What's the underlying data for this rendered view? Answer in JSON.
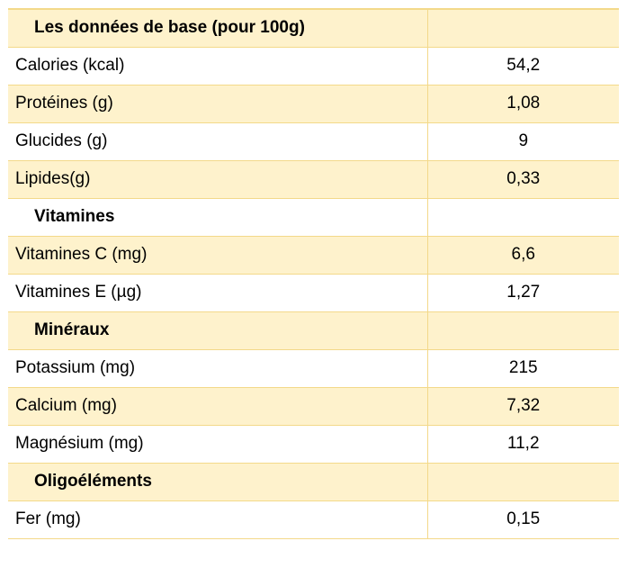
{
  "title": "Les données de base (pour 100g)",
  "rows": [
    {
      "label": "Calories (kcal)",
      "value": "54,2"
    },
    {
      "label": "Protéines (g)",
      "value": "1,08"
    },
    {
      "label": "Glucides (g)",
      "value": "9"
    },
    {
      "label": "Lipides(g)",
      "value": "0,33"
    },
    {
      "label": "Vitamines",
      "value": ""
    },
    {
      "label": "Vitamines C (mg)",
      "value": "6,6"
    },
    {
      "label": "Vitamines E (µg)",
      "value": "1,27"
    },
    {
      "label": "Minéraux",
      "value": ""
    },
    {
      "label": "Potassium (mg)",
      "value": "215"
    },
    {
      "label": "Calcium (mg)",
      "value": "7,32"
    },
    {
      "label": "Magnésium (mg)",
      "value": "11,2"
    },
    {
      "label": "Oligoéléments",
      "value": ""
    },
    {
      "label": "Fer (mg)",
      "value": "0,15"
    }
  ],
  "colors": {
    "shade": "#fef2cc",
    "border": "#f3d98a"
  }
}
